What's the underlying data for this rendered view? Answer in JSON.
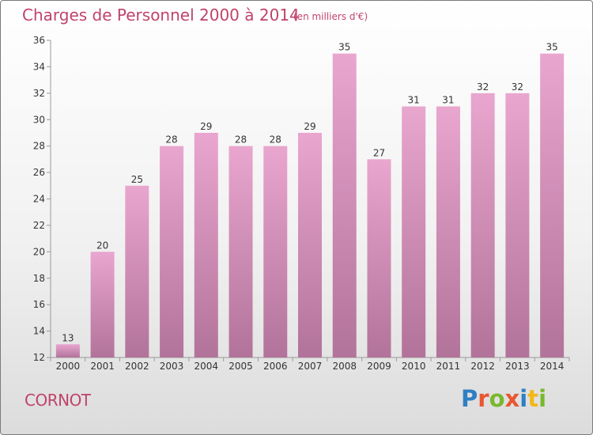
{
  "header": {
    "title": "Charges de Personnel 2000 à 2014",
    "subtitle": "(en milliers d'€)"
  },
  "footer": {
    "commune": "CORNOT",
    "logo_text": "Proxiti"
  },
  "colors": {
    "title": "#c0436a",
    "bar_top": "#e9a6cf",
    "bar_bottom": "#b2739a",
    "logo_letters": [
      "#2e7fc3",
      "#e9572f",
      "#79b82d",
      "#e9572f",
      "#2e7fc3",
      "#f2b71a",
      "#79b82d"
    ]
  },
  "chart_data": {
    "type": "bar",
    "title": "Charges de Personnel 2000 à 2014",
    "subtitle": "(en milliers d'€)",
    "xlabel": "",
    "ylabel": "",
    "categories": [
      "2000",
      "2001",
      "2002",
      "2003",
      "2004",
      "2005",
      "2006",
      "2007",
      "2008",
      "2009",
      "2010",
      "2011",
      "2012",
      "2013",
      "2014"
    ],
    "values": [
      13,
      20,
      25,
      28,
      29,
      28,
      28,
      29,
      35,
      27,
      31,
      31,
      32,
      32,
      35
    ],
    "ylim": [
      12,
      36
    ],
    "yticks": [
      12,
      14,
      16,
      18,
      20,
      22,
      24,
      26,
      28,
      30,
      32,
      34,
      36
    ],
    "grid": false,
    "legend": "none"
  }
}
